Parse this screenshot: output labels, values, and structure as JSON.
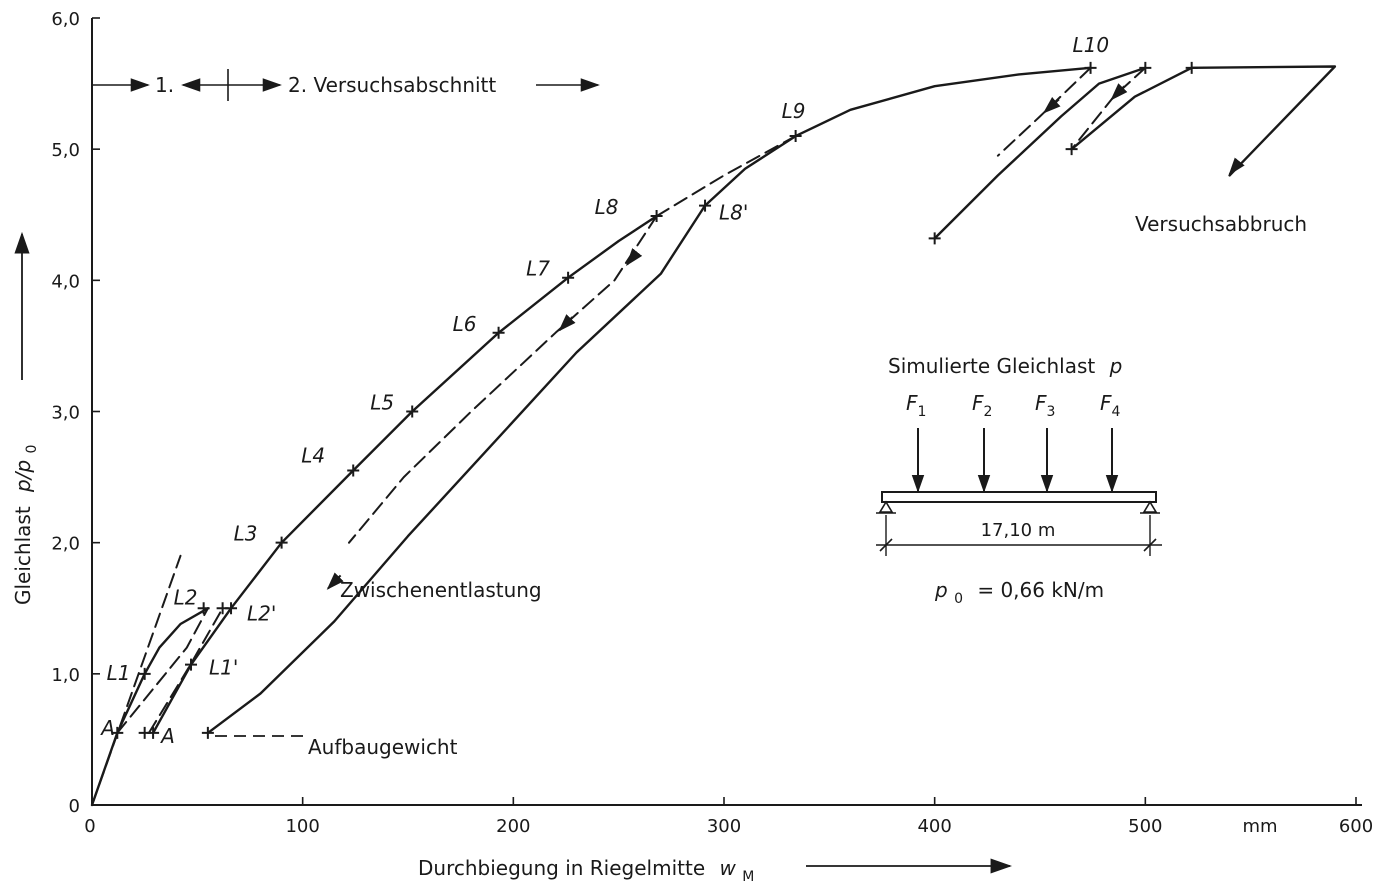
{
  "chart_data": {
    "type": "line",
    "title": "",
    "xlabel": "Durchbiegung in Riegelmitte",
    "xlabel_symbol": "w",
    "xlabel_sub": "M",
    "ylabel": "Gleichlast",
    "ylabel_symbol": "p/p",
    "ylabel_sub": "0",
    "xlim": [
      0,
      600
    ],
    "ylim": [
      0,
      6.0
    ],
    "x_unit_label": "mm",
    "x_ticks": [
      {
        "value": 0,
        "label": "0"
      },
      {
        "value": 100,
        "label": "100"
      },
      {
        "value": 200,
        "label": "200"
      },
      {
        "value": 300,
        "label": "300"
      },
      {
        "value": 400,
        "label": "400"
      },
      {
        "value": 500,
        "label": "500"
      },
      {
        "value": 600,
        "label": "600"
      }
    ],
    "y_ticks": [
      {
        "value": 0,
        "label": "0"
      },
      {
        "value": 1,
        "label": "1,0"
      },
      {
        "value": 2,
        "label": "2,0"
      },
      {
        "value": 3,
        "label": "3,0"
      },
      {
        "value": 4,
        "label": "4,0"
      },
      {
        "value": 5,
        "label": "5,0"
      },
      {
        "value": 6,
        "label": "6,0"
      }
    ],
    "grid": false,
    "series": [
      {
        "style": "solid",
        "points": [
          [
            0,
            0
          ],
          [
            12,
            0.55
          ],
          [
            25,
            1.0
          ],
          [
            32,
            1.2
          ],
          [
            42,
            1.38
          ],
          [
            55,
            1.5
          ]
        ]
      },
      {
        "style": "dashed",
        "points": [
          [
            0,
            0
          ],
          [
            42,
            1.9
          ]
        ]
      },
      {
        "style": "dashed",
        "points": [
          [
            12,
            0.55
          ],
          [
            45,
            1.2
          ],
          [
            55,
            1.5
          ]
        ]
      },
      {
        "style": "dashed",
        "points": [
          [
            27,
            0.55
          ],
          [
            46,
            1.05
          ],
          [
            62,
            1.5
          ]
        ]
      },
      {
        "style": "solid",
        "points": [
          [
            29,
            0.55
          ],
          [
            47,
            1.07
          ],
          [
            66,
            1.5
          ]
        ]
      },
      {
        "style": "solid",
        "points": [
          [
            66,
            1.5
          ],
          [
            90,
            2.0
          ],
          [
            124,
            2.55
          ],
          [
            152,
            3.0
          ],
          [
            193,
            3.6
          ],
          [
            226,
            4.02
          ],
          [
            250,
            4.3
          ],
          [
            268,
            4.49
          ]
        ]
      },
      {
        "style": "dashed",
        "points": [
          [
            268,
            4.49
          ],
          [
            248,
            4.0
          ],
          [
            220,
            3.6
          ],
          [
            180,
            3.0
          ],
          [
            148,
            2.5
          ],
          [
            122,
            2.0
          ]
        ]
      },
      {
        "style": "solid",
        "points": [
          [
            55,
            0.55
          ],
          [
            80,
            0.85
          ],
          [
            115,
            1.4
          ],
          [
            150,
            2.05
          ],
          [
            190,
            2.75
          ],
          [
            230,
            3.45
          ],
          [
            270,
            4.05
          ],
          [
            291,
            4.57
          ]
        ]
      },
      {
        "style": "dashed",
        "points": [
          [
            268,
            4.49
          ],
          [
            300,
            4.8
          ],
          [
            334,
            5.1
          ]
        ]
      },
      {
        "style": "solid",
        "points": [
          [
            291,
            4.57
          ],
          [
            310,
            4.85
          ],
          [
            334,
            5.1
          ],
          [
            360,
            5.3
          ],
          [
            400,
            5.48
          ],
          [
            440,
            5.57
          ],
          [
            474,
            5.62
          ]
        ]
      },
      {
        "style": "dashed",
        "points": [
          [
            474,
            5.62
          ],
          [
            450,
            5.25
          ],
          [
            430,
            4.95
          ]
        ]
      },
      {
        "style": "solid",
        "points": [
          [
            400,
            4.32
          ],
          [
            430,
            4.8
          ],
          [
            460,
            5.25
          ],
          [
            478,
            5.5
          ],
          [
            500,
            5.62
          ]
        ]
      },
      {
        "style": "dashed",
        "points": [
          [
            500,
            5.62
          ],
          [
            485,
            5.4
          ],
          [
            465,
            5.0
          ]
        ]
      },
      {
        "style": "solid",
        "points": [
          [
            465,
            5.0
          ],
          [
            495,
            5.4
          ],
          [
            522,
            5.62
          ],
          [
            590,
            5.63
          ],
          [
            540,
            4.8
          ]
        ]
      }
    ],
    "markers": [
      {
        "x": 12,
        "y": 0.55,
        "label": "A"
      },
      {
        "x": 25,
        "y": 0.55,
        "label": ""
      },
      {
        "x": 29,
        "y": 0.55,
        "label": "A"
      },
      {
        "x": 55,
        "y": 0.55,
        "label": ""
      },
      {
        "x": 25,
        "y": 1.0,
        "label": "L1"
      },
      {
        "x": 47,
        "y": 1.07,
        "label": "L1'"
      },
      {
        "x": 53,
        "y": 1.5,
        "label": "L2"
      },
      {
        "x": 62,
        "y": 1.5,
        "label": ""
      },
      {
        "x": 66,
        "y": 1.5,
        "label": "L2'"
      },
      {
        "x": 90,
        "y": 2.0,
        "label": "L3"
      },
      {
        "x": 124,
        "y": 2.55,
        "label": "L4"
      },
      {
        "x": 152,
        "y": 3.0,
        "label": "L5"
      },
      {
        "x": 193,
        "y": 3.6,
        "label": "L6"
      },
      {
        "x": 226,
        "y": 4.02,
        "label": "L7"
      },
      {
        "x": 268,
        "y": 4.49,
        "label": "L8"
      },
      {
        "x": 291,
        "y": 4.57,
        "label": "L8'"
      },
      {
        "x": 334,
        "y": 5.1,
        "label": "L9"
      },
      {
        "x": 474,
        "y": 5.62,
        "label": "L10"
      },
      {
        "x": 500,
        "y": 5.62,
        "label": ""
      },
      {
        "x": 522,
        "y": 5.62,
        "label": ""
      },
      {
        "x": 400,
        "y": 4.32,
        "label": ""
      },
      {
        "x": 465,
        "y": 5.0,
        "label": ""
      }
    ],
    "annotations": {
      "section1": "1.",
      "section2": "2. Versuchsabschnitt",
      "zwischen": "Zwischenentlastung",
      "aufbau": "Aufbaugewicht",
      "abbruch": "Versuchsabbruch"
    },
    "inset": {
      "title": "Simulierte Gleichlast",
      "title_symbol": "p",
      "forces": [
        {
          "symbol": "F",
          "sub": "1"
        },
        {
          "symbol": "F",
          "sub": "2"
        },
        {
          "symbol": "F",
          "sub": "3"
        },
        {
          "symbol": "F",
          "sub": "4"
        }
      ],
      "span": "17,10 m",
      "p0_symbol": "p",
      "p0_sub": "0",
      "p0_value": "= 0,66 kN/m"
    }
  }
}
